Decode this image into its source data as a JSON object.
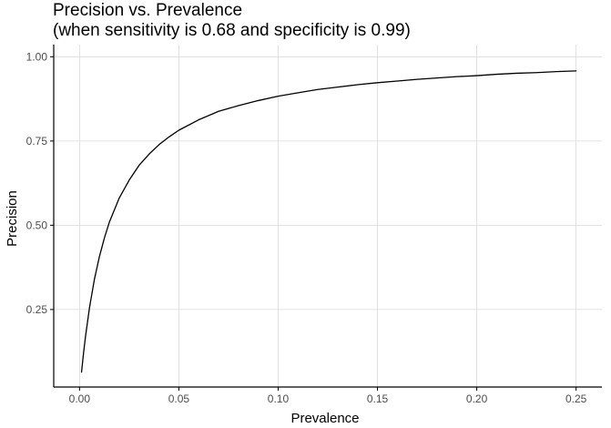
{
  "chart_data": {
    "type": "line",
    "title": "Precision vs. Prevalence",
    "subtitle": "(when sensitivity is 0.68 and specificity is 0.99)",
    "xlabel": "Prevalence",
    "ylabel": "Precision",
    "xlim": [
      -0.013,
      0.263
    ],
    "ylim": [
      0.02,
      1.036
    ],
    "x_ticks": [
      0.0,
      0.05,
      0.1,
      0.15,
      0.2,
      0.25
    ],
    "x_tick_labels": [
      "0.00",
      "0.05",
      "0.10",
      "0.15",
      "0.20",
      "0.25"
    ],
    "y_ticks": [
      0.25,
      0.5,
      0.75,
      1.0
    ],
    "y_tick_labels": [
      "0.25",
      "0.50",
      "0.75",
      "1.00"
    ],
    "grid": true,
    "legend": "none",
    "colors": {
      "line": "#000000",
      "grid": "#d9d9d9",
      "axis": "#000000",
      "tick_label": "#4d4d4d"
    },
    "series": [
      {
        "x": [
          0.001,
          0.002,
          0.003,
          0.005,
          0.0075,
          0.01,
          0.0125,
          0.015,
          0.02,
          0.025,
          0.03,
          0.035,
          0.04,
          0.045,
          0.05,
          0.06,
          0.07,
          0.08,
          0.09,
          0.1,
          0.11,
          0.12,
          0.13,
          0.14,
          0.15,
          0.16,
          0.17,
          0.18,
          0.19,
          0.2,
          0.21,
          0.22,
          0.23,
          0.24,
          0.25
        ],
        "y": [
          0.064,
          0.12,
          0.17,
          0.255,
          0.34,
          0.407,
          0.462,
          0.509,
          0.581,
          0.634,
          0.678,
          0.711,
          0.739,
          0.762,
          0.782,
          0.813,
          0.838,
          0.855,
          0.87,
          0.883,
          0.893,
          0.903,
          0.91,
          0.917,
          0.923,
          0.928,
          0.933,
          0.937,
          0.941,
          0.944,
          0.948,
          0.951,
          0.953,
          0.956,
          0.958
        ]
      }
    ]
  }
}
